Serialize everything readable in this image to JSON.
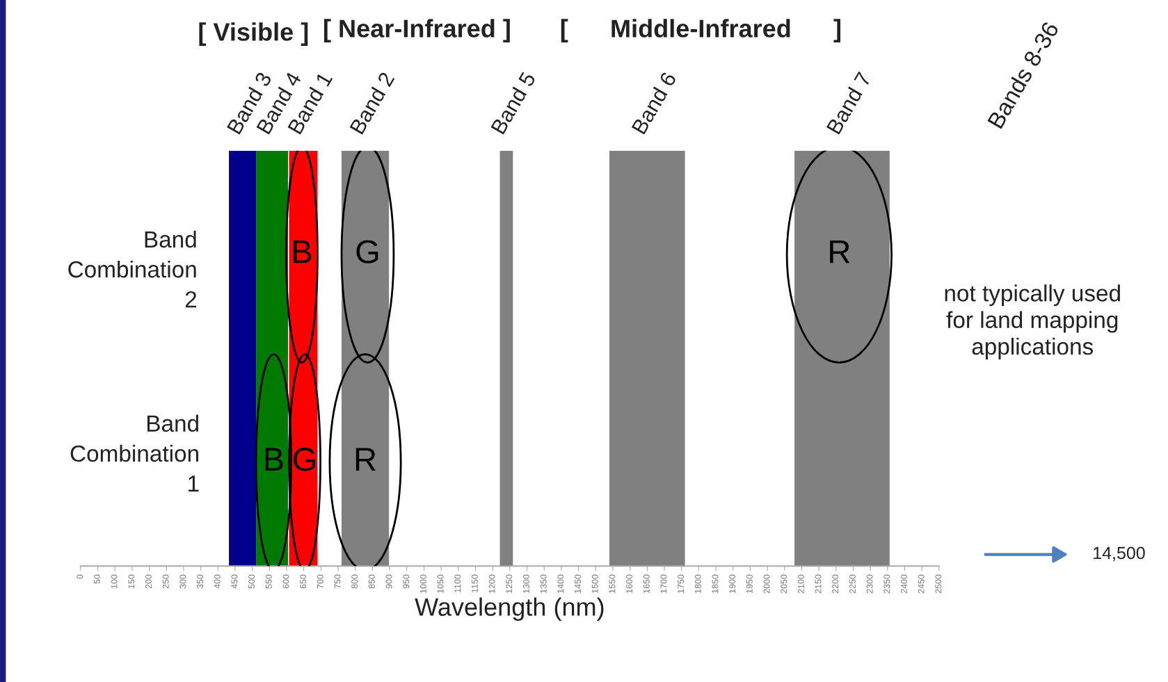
{
  "chart_data": {
    "type": "bar",
    "orientation": "horizontal",
    "xlabel": "Wavelength (nm)",
    "categories": [
      null
    ],
    "xlim": [
      0,
      2500
    ],
    "xticks": [
      0,
      50,
      100,
      150,
      200,
      250,
      300,
      350,
      400,
      450,
      500,
      550,
      600,
      650,
      700,
      750,
      800,
      850,
      900,
      950,
      1000,
      1050,
      1100,
      1150,
      1200,
      1250,
      1300,
      1350,
      1400,
      1450,
      1500,
      1550,
      1600,
      1650,
      1700,
      1750,
      1800,
      1850,
      1900,
      1950,
      2000,
      2050,
      2100,
      2150,
      2200,
      2250,
      2300,
      2350,
      2400,
      2450,
      2500
    ],
    "series": [
      {
        "name": "Band 3",
        "color": "#00008b",
        "base": [
          432
        ],
        "values": [
          79
        ]
      },
      {
        "name": "Band 4",
        "color": "#007a00",
        "base": [
          511
        ],
        "values": [
          93
        ]
      },
      {
        "name": "Band 1",
        "color": "#ff0000",
        "base": [
          607
        ],
        "values": [
          83
        ]
      },
      {
        "name": "Band 2",
        "color": "#808080",
        "base": [
          760
        ],
        "values": [
          138
        ]
      },
      {
        "name": "Band 5",
        "color": "#808080",
        "base": [
          1221
        ],
        "values": [
          38
        ]
      },
      {
        "name": "Band 6",
        "color": "#808080",
        "base": [
          1540
        ],
        "values": [
          220
        ]
      },
      {
        "name": "Band 7",
        "color": "#808080",
        "base": [
          2079
        ],
        "values": [
          277
        ]
      }
    ],
    "annotations": [
      "B",
      "G",
      "R",
      "B",
      "G",
      "R",
      "Band\nCombination\n2",
      "Band\nCombination\n1",
      "[ Visible ]",
      "[ Near-Infrared ]",
      "[      Middle-Infrared      ]",
      "Bands 8-36",
      "not typically used\nfor land mapping\napplications",
      "14,500"
    ]
  }
}
